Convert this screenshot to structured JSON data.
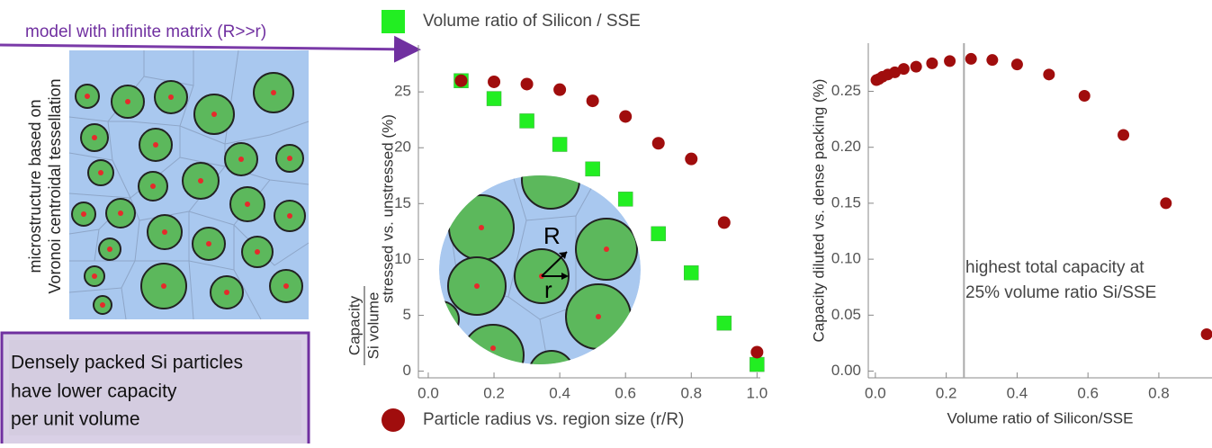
{
  "figure": {
    "model_label": "model with infinite matrix (R>>r)",
    "microstructure_label": [
      "microstructure based on",
      "Voronoi centroidal tessellation"
    ],
    "box_text": [
      "Densely packed Si particles",
      "have lower capacity",
      "per unit volume"
    ],
    "inset_labels": [
      "R",
      "r"
    ]
  },
  "chart_data": [
    {
      "type": "scatter",
      "ylabel": "stressed vs. unstressed (%)",
      "ylabel_fraction": {
        "numerator": "Capacity",
        "denominator": "Si volume"
      },
      "x": [
        0.1,
        0.2,
        0.3,
        0.4,
        0.5,
        0.6,
        0.7,
        0.8,
        0.9,
        1.0
      ],
      "series": [
        {
          "name": "Volume ratio of Silicon / SSE",
          "color": "#22ee22",
          "marker": "square",
          "values": [
            26.0,
            24.4,
            22.4,
            20.3,
            18.1,
            15.4,
            12.3,
            8.8,
            4.3,
            0.6
          ]
        },
        {
          "name": "Particle radius vs. region size (r/R)",
          "color": "#a00d0d",
          "marker": "circle",
          "values": [
            26.0,
            25.9,
            25.7,
            25.2,
            24.2,
            22.8,
            20.4,
            19.0,
            13.3,
            1.7
          ]
        }
      ],
      "xlim": [
        -0.03,
        1.01
      ],
      "ylim": [
        -0.6,
        29.2
      ],
      "xticks": [
        {
          "value": 0,
          "label": "0.0"
        },
        0.2,
        0.4,
        0.6,
        0.8,
        {
          "value": 1,
          "label": "1.0"
        }
      ],
      "yticks": [
        0,
        5,
        10,
        15,
        20,
        25
      ]
    },
    {
      "type": "scatter",
      "xlabel": "Volume ratio of Silicon/SSE",
      "ylabel": "Capacity diluted vs. dense packing (%)",
      "x": [
        0.003,
        0.01,
        0.02,
        0.035,
        0.055,
        0.08,
        0.115,
        0.16,
        0.21,
        0.27,
        0.33,
        0.4,
        0.49,
        0.59,
        0.7,
        0.82,
        0.935
      ],
      "series": [
        {
          "color": "#a00d0d",
          "marker": "circle",
          "values": [
            0.26,
            0.261,
            0.263,
            0.265,
            0.267,
            0.27,
            0.272,
            0.275,
            0.277,
            0.279,
            0.278,
            0.274,
            0.265,
            0.246,
            0.211,
            0.15,
            0.033
          ]
        }
      ],
      "vline": 0.25,
      "annotation": [
        "highest total capacity at",
        "25% volume ratio Si/SSE"
      ],
      "xlim": [
        -0.02,
        0.95
      ],
      "ylim": [
        -0.006,
        0.293
      ],
      "xticks": [
        {
          "value": 0,
          "label": "0.0"
        },
        0.2,
        0.4,
        0.6,
        0.8
      ],
      "yticks": [
        {
          "value": 0,
          "label": "0.00"
        },
        0.05,
        {
          "value": 0.1,
          "label": "0.10"
        },
        0.15,
        {
          "value": 0.2,
          "label": "0.20"
        },
        0.25
      ]
    }
  ]
}
